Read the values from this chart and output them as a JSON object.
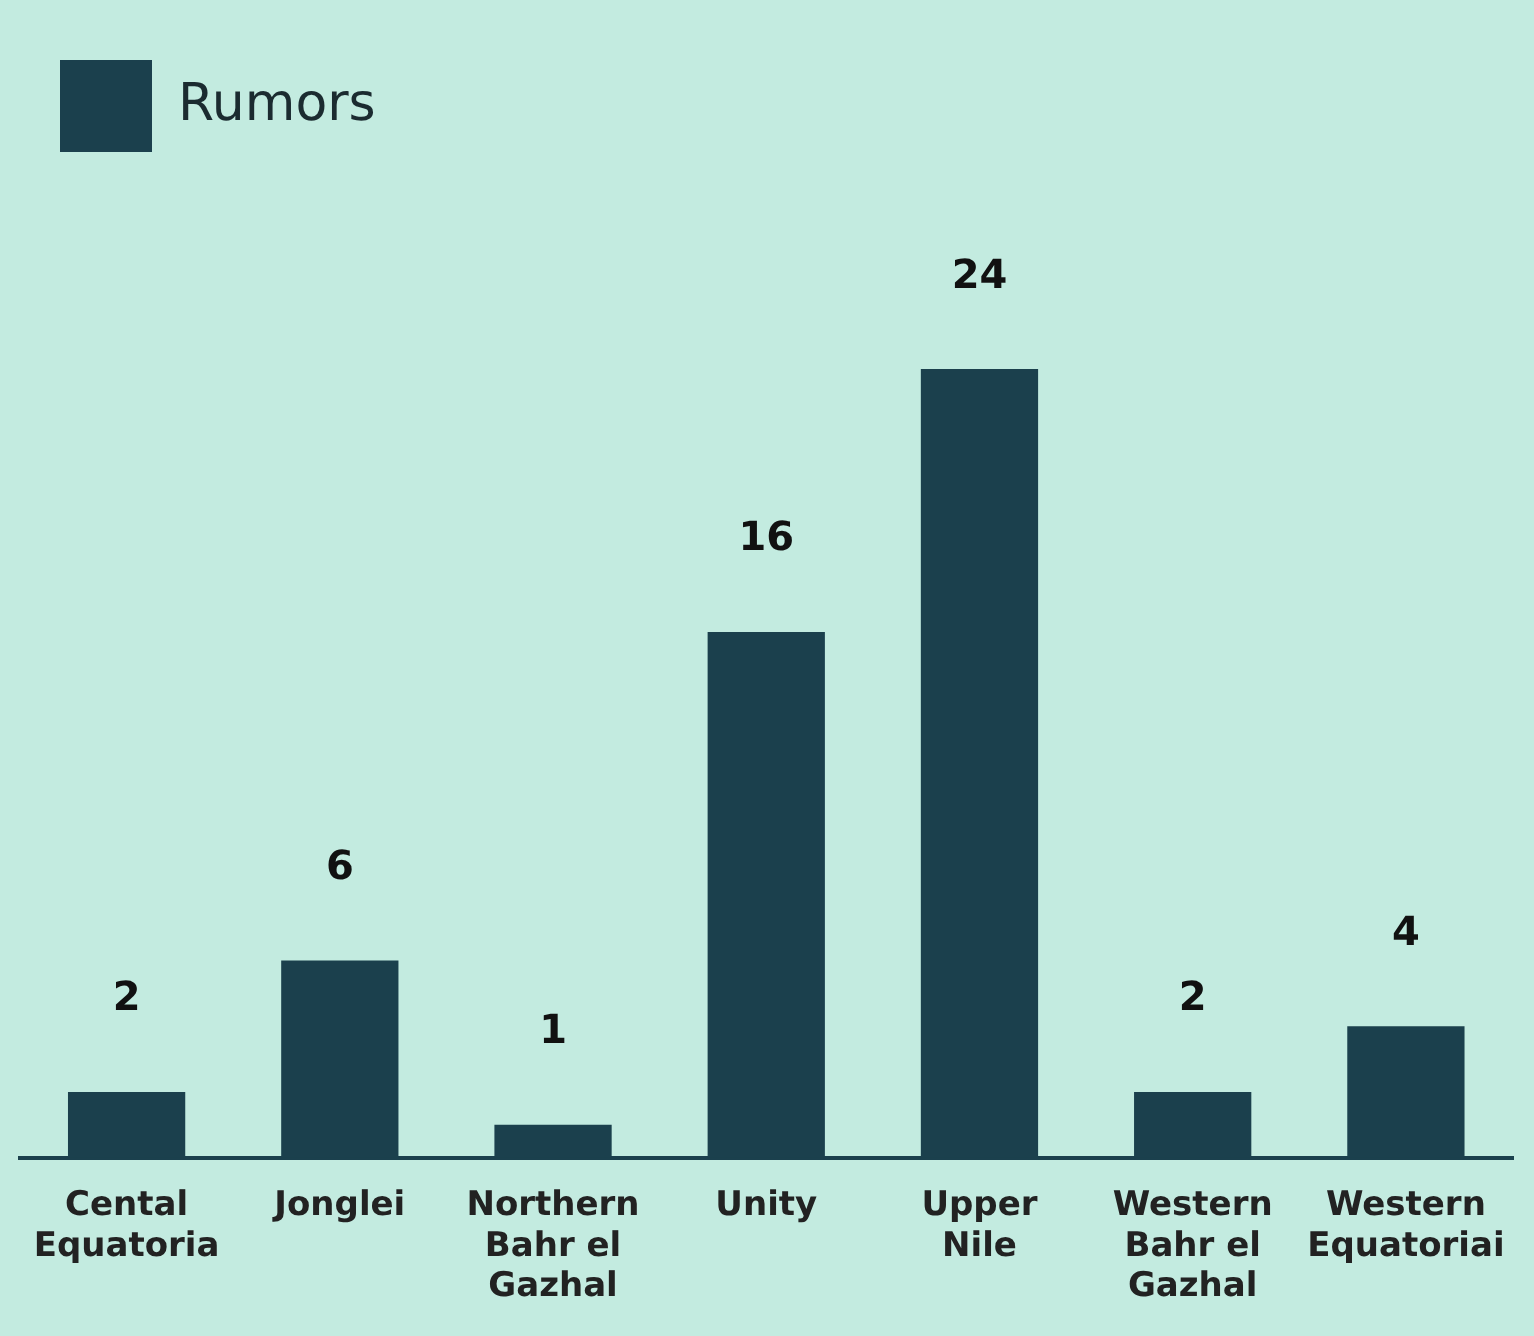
{
  "chart_data": {
    "type": "bar",
    "categories": [
      "Cental Equatoria",
      "Jonglei",
      "Northern Bahr el Gazhal",
      "Unity",
      "Upper Nile",
      "Western Bahr el Gazhal",
      "Western Equatoriai"
    ],
    "series": [
      {
        "name": "Rumors",
        "color": "#1b404d",
        "values": [
          2,
          6,
          1,
          16,
          24,
          2,
          4
        ]
      }
    ],
    "data_labels": true,
    "grid": false,
    "legend": "top left"
  }
}
